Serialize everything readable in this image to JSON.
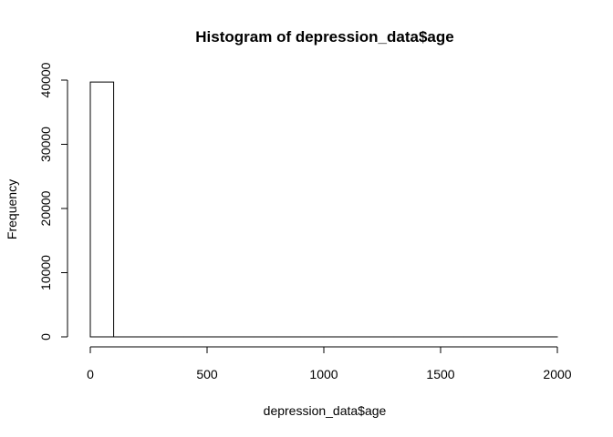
{
  "chart_data": {
    "type": "bar",
    "title": "Histogram of depression_data$age",
    "xlabel": "depression_data$age",
    "ylabel": "Frequency",
    "bin_width": 100,
    "bin_edges": [
      0,
      100,
      200,
      300,
      400,
      500,
      600,
      700,
      800,
      900,
      1000,
      1100,
      1200,
      1300,
      1400,
      1500,
      1600,
      1700,
      1800,
      1900,
      2000
    ],
    "values": [
      39700,
      0,
      0,
      0,
      0,
      0,
      0,
      0,
      0,
      0,
      0,
      0,
      0,
      0,
      0,
      0,
      0,
      0,
      0,
      1
    ],
    "xlim": [
      0,
      2000
    ],
    "ylim": [
      0,
      40000
    ],
    "x_ticks": [
      0,
      500,
      1000,
      1500,
      2000
    ],
    "y_ticks": [
      0,
      10000,
      20000,
      30000,
      40000
    ],
    "grid": false,
    "legend": "none",
    "bar_fill": "#ffffff",
    "bar_stroke": "#000000"
  }
}
